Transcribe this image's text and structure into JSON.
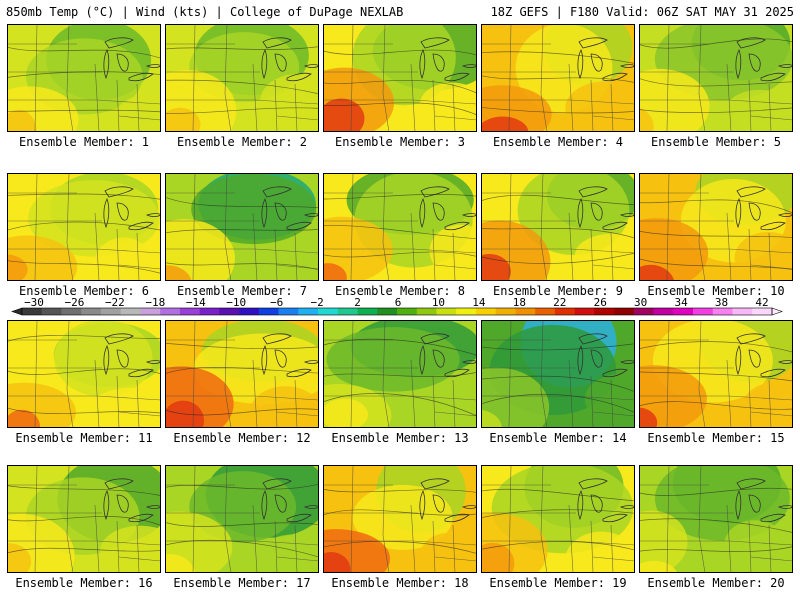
{
  "header": {
    "left": "850mb Temp (°C) | Wind (kts) | College of DuPage NEXLAB",
    "right": "18Z GEFS | F180 Valid: 06Z SAT MAY 31 2025"
  },
  "colorbar": {
    "labels": [
      "-30",
      "-26",
      "-22",
      "-18",
      "-14",
      "-10",
      "-6",
      "-2",
      "2",
      "6",
      "10",
      "14",
      "18",
      "22",
      "26",
      "30",
      "34",
      "38",
      "42"
    ],
    "colors": [
      "#3a3a3a",
      "#555555",
      "#707070",
      "#8a8a8a",
      "#a0a0a0",
      "#b8b8b8",
      "#c9a0dc",
      "#b070e0",
      "#9a40d8",
      "#7a20c8",
      "#5a10b0",
      "#3010c0",
      "#1040e0",
      "#1a80f0",
      "#20b0f0",
      "#20d8d0",
      "#20c890",
      "#10b050",
      "#209020",
      "#50b010",
      "#90c810",
      "#c8e010",
      "#f0f010",
      "#f8d000",
      "#f0b000",
      "#f09000",
      "#e86000",
      "#e03000",
      "#d01010",
      "#b00000",
      "#900000",
      "#a00060",
      "#c000a0",
      "#e000c0",
      "#f040e0",
      "#f880f0",
      "#f8b8f8",
      "#fbd8fb"
    ]
  },
  "members": [
    {
      "label": "Ensemble Member: 1",
      "palette": [
        "#6cba2a",
        "#a9d525",
        "#d4e31f",
        "#f7e91b",
        "#f6c20f"
      ]
    },
    {
      "label": "Ensemble Member: 2",
      "palette": [
        "#6cba2a",
        "#a9d525",
        "#d4e31f",
        "#f7e91b",
        "#f6c20f"
      ]
    },
    {
      "label": "Ensemble Member: 3",
      "palette": [
        "#4fa82a",
        "#a9d525",
        "#f7e91b",
        "#f39a0d",
        "#e23a12"
      ]
    },
    {
      "label": "Ensemble Member: 4",
      "palette": [
        "#a9d525",
        "#f7e91b",
        "#f6c20f",
        "#f39a0d",
        "#e23a12"
      ]
    },
    {
      "label": "Ensemble Member: 5",
      "palette": [
        "#4fa82a",
        "#8bc72a",
        "#c4de21",
        "#f7e91b",
        "#f6c20f"
      ]
    },
    {
      "label": "Ensemble Member: 6",
      "palette": [
        "#a9d525",
        "#d4e31f",
        "#f7e91b",
        "#f6c20f",
        "#f39a0d"
      ]
    },
    {
      "label": "Ensemble Member: 7",
      "palette": [
        "#1fa87a",
        "#4fa82a",
        "#a9d525",
        "#f7e91b",
        "#f39a0d"
      ]
    },
    {
      "label": "Ensemble Member: 8",
      "palette": [
        "#4fa82a",
        "#a9d525",
        "#f7e91b",
        "#f6c20f",
        "#f06a10"
      ]
    },
    {
      "label": "Ensemble Member: 9",
      "palette": [
        "#4fa82a",
        "#a9d525",
        "#f7e91b",
        "#f39a0d",
        "#e23a12"
      ]
    },
    {
      "label": "Ensemble Member: 10",
      "palette": [
        "#a9d525",
        "#f7e91b",
        "#f6c20f",
        "#f39a0d",
        "#e23a12"
      ]
    },
    {
      "label": "Ensemble Member: 11",
      "palette": [
        "#a9d525",
        "#d4e31f",
        "#f7e91b",
        "#f6c20f",
        "#f06a10"
      ]
    },
    {
      "label": "Ensemble Member: 12",
      "palette": [
        "#a9d525",
        "#f7e91b",
        "#f6c20f",
        "#f06a10",
        "#e23a12"
      ]
    },
    {
      "label": "Ensemble Member: 13",
      "palette": [
        "#2f9a3a",
        "#6cba2a",
        "#a9d525",
        "#d4e31f",
        "#f7e91b"
      ]
    },
    {
      "label": "Ensemble Member: 14",
      "palette": [
        "#2ab0e0",
        "#2f9a3a",
        "#4fa82a",
        "#8bc72a",
        "#c4de21"
      ]
    },
    {
      "label": "Ensemble Member: 15",
      "palette": [
        "#a9d525",
        "#f7e91b",
        "#f6c20f",
        "#f39a0d",
        "#e23a12"
      ]
    },
    {
      "label": "Ensemble Member: 16",
      "palette": [
        "#4fa82a",
        "#a9d525",
        "#d4e31f",
        "#f7e91b",
        "#f6c20f"
      ]
    },
    {
      "label": "Ensemble Member: 17",
      "palette": [
        "#2f9a3a",
        "#6cba2a",
        "#a9d525",
        "#d4e31f",
        "#f7e91b"
      ]
    },
    {
      "label": "Ensemble Member: 18",
      "palette": [
        "#a9d525",
        "#f7e91b",
        "#f6c20f",
        "#f06a10",
        "#e23a12"
      ]
    },
    {
      "label": "Ensemble Member: 19",
      "palette": [
        "#6cba2a",
        "#a9d525",
        "#f7e91b",
        "#f6c20f",
        "#f39a0d"
      ]
    },
    {
      "label": "Ensemble Member: 20",
      "palette": [
        "#4fa82a",
        "#6cba2a",
        "#a9d525",
        "#d4e31f",
        "#f7e91b"
      ]
    }
  ]
}
